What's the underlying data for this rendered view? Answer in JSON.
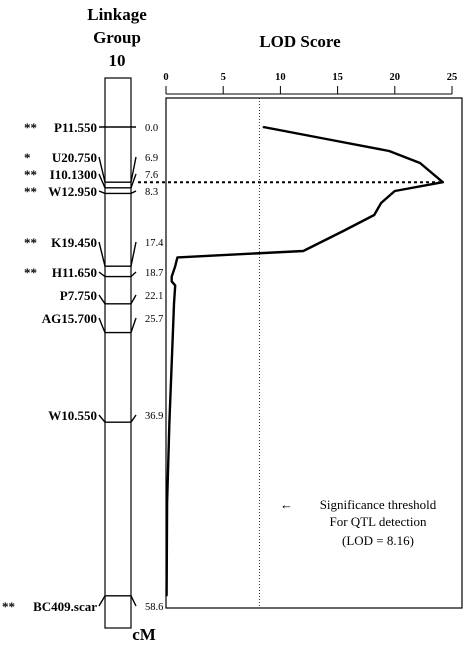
{
  "linkage_group": {
    "title_lines": [
      "Linkage",
      "Group",
      "10"
    ],
    "unit_label": "cM",
    "markers": [
      {
        "stars": "**",
        "name": "P11.550",
        "cM": "0.0"
      },
      {
        "stars": "*",
        "name": "U20.750",
        "cM": "6.9"
      },
      {
        "stars": "**",
        "name": "I10.1300",
        "cM": "7.6"
      },
      {
        "stars": "**",
        "name": "W12.950",
        "cM": "8.3"
      },
      {
        "stars": "**",
        "name": "K19.450",
        "cM": "17.4"
      },
      {
        "stars": "**",
        "name": "H11.650",
        "cM": "18.7"
      },
      {
        "stars": "",
        "name": "P7.750",
        "cM": "22.1"
      },
      {
        "stars": "",
        "name": "AG15.700",
        "cM": "25.7"
      },
      {
        "stars": "",
        "name": "W10.550",
        "cM": "36.9"
      },
      {
        "stars": "**",
        "name": "BC409.scar",
        "cM": "58.6"
      }
    ]
  },
  "chart_data": {
    "type": "line",
    "title": "LOD Score",
    "x_axis": {
      "label": "LOD Score",
      "range": [
        0,
        25
      ],
      "ticks": [
        "0",
        "5",
        "10",
        "15",
        "20",
        "25"
      ],
      "position": "top"
    },
    "y_axis": {
      "label": "cM",
      "range": [
        0,
        58.6
      ],
      "inverted": true
    },
    "series": [
      {
        "points": [
          {
            "cM": 0.0,
            "lod": 8.5
          },
          {
            "cM": 1.5,
            "lod": 14.0
          },
          {
            "cM": 3.0,
            "lod": 19.5
          },
          {
            "cM": 4.5,
            "lod": 22.2
          },
          {
            "cM": 6.9,
            "lod": 24.2
          },
          {
            "cM": 8.0,
            "lod": 20.0
          },
          {
            "cM": 9.5,
            "lod": 18.8
          },
          {
            "cM": 11.0,
            "lod": 18.2
          },
          {
            "cM": 13.0,
            "lod": 15.5
          },
          {
            "cM": 15.5,
            "lod": 12.0
          },
          {
            "cM": 16.3,
            "lod": 1.0
          },
          {
            "cM": 17.4,
            "lod": 0.8
          },
          {
            "cM": 18.7,
            "lod": 0.5
          },
          {
            "cM": 19.3,
            "lod": 0.5
          },
          {
            "cM": 19.8,
            "lod": 0.8
          },
          {
            "cM": 22.1,
            "lod": 0.7
          },
          {
            "cM": 25.7,
            "lod": 0.6
          },
          {
            "cM": 36.9,
            "lod": 0.3
          },
          {
            "cM": 47.0,
            "lod": 0.1
          },
          {
            "cM": 58.6,
            "lod": 0.05
          }
        ]
      }
    ],
    "threshold": {
      "lod": 8.16,
      "label_lines": [
        "Significance threshold",
        "For QTL detection",
        "(LOD = 8.16)"
      ],
      "arrow": "←"
    },
    "peak_marker_cM": 6.9,
    "grid": false
  },
  "colors": {
    "ink": "#000000",
    "background": "#ffffff"
  }
}
